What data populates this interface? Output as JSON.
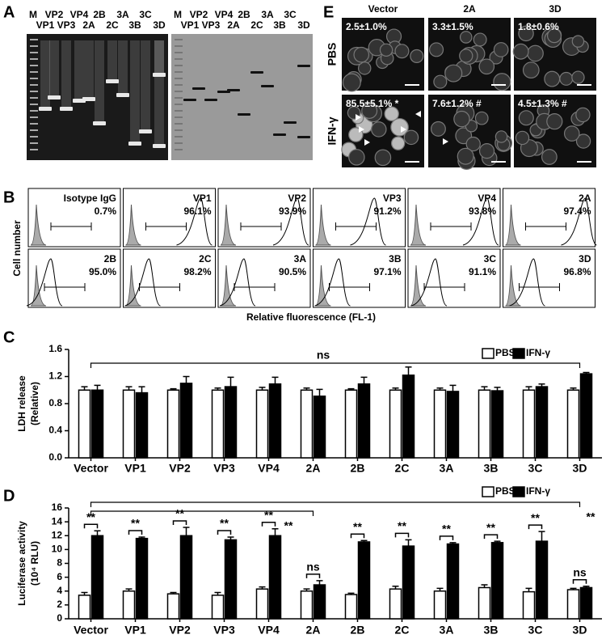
{
  "gel": {
    "label": "A",
    "top_lanes": [
      "M",
      "VP2",
      "VP4",
      "2B",
      "3A",
      "3C"
    ],
    "bottom_lanes": [
      "VP1",
      "VP3",
      "2A",
      "2C",
      "3B",
      "3D"
    ]
  },
  "microscopy": {
    "label": "E",
    "columns": [
      "Vector",
      "2A",
      "3D"
    ],
    "rows": [
      {
        "name": "PBS",
        "values": [
          "2.5±1.0%",
          "3.3±1.5%",
          "1.8±0.6%"
        ]
      },
      {
        "name": "IFN-γ",
        "values": [
          "85.5±5.1% *",
          "7.6±1.2% #",
          "4.5±1.3% #"
        ]
      }
    ]
  },
  "flow": {
    "label": "B",
    "y_label": "Cell number",
    "x_label": "Relative fluorescence (FL-1)",
    "panels": [
      {
        "name": "Isotype IgG",
        "percent": "0.7%"
      },
      {
        "name": "VP1",
        "percent": "96.1%"
      },
      {
        "name": "VP2",
        "percent": "93.9%"
      },
      {
        "name": "VP3",
        "percent": "91.2%"
      },
      {
        "name": "VP4",
        "percent": "93.8%"
      },
      {
        "name": "2A",
        "percent": "97.4%"
      },
      {
        "name": "2B",
        "percent": "95.0%"
      },
      {
        "name": "2C",
        "percent": "98.2%"
      },
      {
        "name": "3A",
        "percent": "90.5%"
      },
      {
        "name": "3B",
        "percent": "97.1%"
      },
      {
        "name": "3C",
        "percent": "91.1%"
      },
      {
        "name": "3D",
        "percent": "96.8%"
      }
    ]
  },
  "chart_data": [
    {
      "panel_label": "C",
      "type": "bar",
      "y_label": [
        "LDH release",
        "(Relative)"
      ],
      "categories": [
        "Vector",
        "VP1",
        "VP2",
        "VP3",
        "VP4",
        "2A",
        "2B",
        "2C",
        "3A",
        "3B",
        "3C",
        "3D"
      ],
      "series": [
        {
          "name": "PBS",
          "color": "#ffffff",
          "values": [
            1.0,
            1.0,
            1.0,
            1.0,
            1.0,
            1.0,
            1.0,
            1.0,
            1.0,
            1.0,
            1.0,
            1.0
          ],
          "errors": [
            0.05,
            0.05,
            0.02,
            0.03,
            0.04,
            0.03,
            0.02,
            0.03,
            0.03,
            0.05,
            0.05,
            0.03
          ]
        },
        {
          "name": "IFN-γ",
          "color": "#000000",
          "values": [
            1.0,
            0.96,
            1.1,
            1.05,
            1.09,
            0.91,
            1.09,
            1.22,
            0.98,
            0.99,
            1.05,
            1.24
          ],
          "errors": [
            0.07,
            0.09,
            0.1,
            0.14,
            0.1,
            0.1,
            0.1,
            0.12,
            0.09,
            0.05,
            0.04,
            0.02
          ]
        }
      ],
      "ylim": [
        0,
        1.6
      ],
      "yticks": [
        {
          "value": 0,
          "label": "0.0"
        },
        {
          "value": 0.4,
          "label": "0.4"
        },
        {
          "value": 0.8,
          "label": "0.8"
        },
        {
          "value": 1.2,
          "label": "1.2"
        },
        {
          "value": 1.6,
          "label": "1.6"
        }
      ],
      "bracket_labels": [
        "ns"
      ]
    },
    {
      "panel_label": "D",
      "type": "bar",
      "y_label": [
        "Luciferase activity",
        "(10⁴ RLU)"
      ],
      "categories": [
        "Vector",
        "VP1",
        "VP2",
        "VP3",
        "VP4",
        "2A",
        "2B",
        "2C",
        "3A",
        "3B",
        "3C",
        "3D"
      ],
      "series": [
        {
          "name": "PBS",
          "color": "#ffffff",
          "values": [
            3.4,
            4.0,
            3.6,
            3.4,
            4.3,
            4.0,
            3.5,
            4.3,
            4.0,
            4.5,
            3.9,
            4.2
          ],
          "errors": [
            0.4,
            0.3,
            0.2,
            0.4,
            0.3,
            0.3,
            0.2,
            0.4,
            0.4,
            0.4,
            0.5,
            0.2
          ]
        },
        {
          "name": "IFN-γ",
          "color": "#000000",
          "values": [
            12.0,
            11.6,
            12.0,
            11.4,
            12.0,
            4.9,
            11.1,
            10.5,
            10.8,
            11.0,
            11.2,
            4.5
          ],
          "errors": [
            0.7,
            0.2,
            1.2,
            0.4,
            1.0,
            0.6,
            0.2,
            0.9,
            0.2,
            0.2,
            1.4,
            0.2
          ]
        }
      ],
      "ylim": [
        0,
        16
      ],
      "yticks": [
        0,
        2,
        4,
        6,
        8,
        10,
        12,
        14,
        16
      ],
      "pair_labels": [
        "**",
        "**",
        "**",
        "**",
        "**",
        "ns",
        "**",
        "**",
        "**",
        "**",
        "**",
        "ns"
      ],
      "bracket_labels": [
        "**",
        "**"
      ]
    }
  ]
}
